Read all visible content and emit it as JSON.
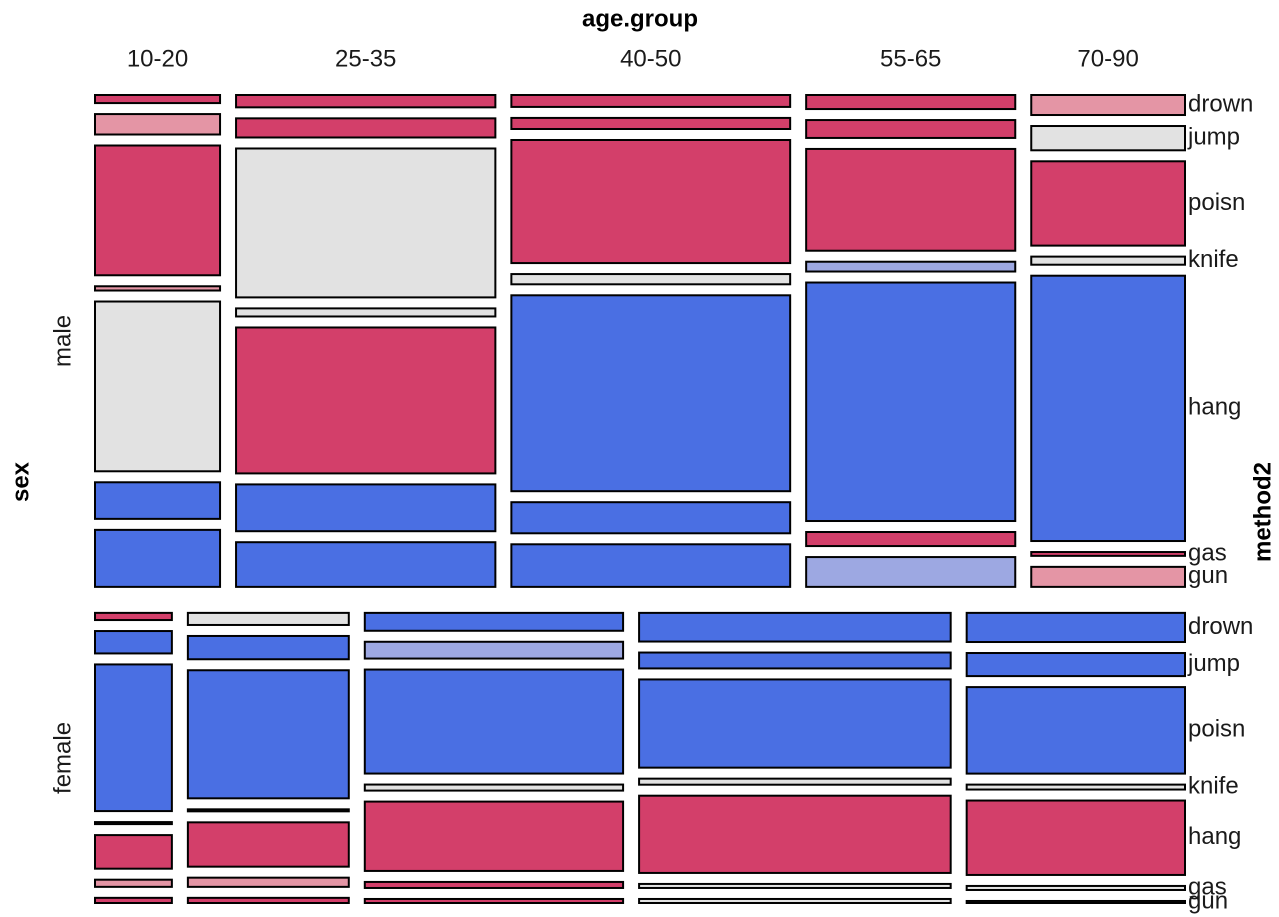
{
  "chart_data": {
    "type": "mosaic",
    "x_label": "age.group",
    "y_label": "sex",
    "z_label": "method2",
    "x_categories": [
      "10-20",
      "25-35",
      "40-50",
      "55-65",
      "70-90"
    ],
    "y_categories": [
      "male",
      "female"
    ],
    "z_categories": [
      "drown",
      "jump",
      "poisn",
      "knife",
      "hang",
      "gas",
      "gun"
    ],
    "rows": [
      {
        "share": 62.9,
        "columns": [
          12.2,
          25.3,
          27.2,
          20.4,
          15.0
        ],
        "cells": [
          [
            1.9,
            4.8,
            30.5,
            1.0,
            39.9,
            8.6,
            13.4
          ],
          [
            2.9,
            4.5,
            35.0,
            1.9,
            34.3,
            11.0,
            10.5
          ],
          [
            2.8,
            2.6,
            28.9,
            2.4,
            46.0,
            7.3,
            10.0
          ],
          [
            3.3,
            4.2,
            23.9,
            2.3,
            56.0,
            3.3,
            7.0
          ],
          [
            4.7,
            5.7,
            19.8,
            1.9,
            62.3,
            0.9,
            4.7
          ]
        ],
        "colors": [
          [
            "#d33f6a",
            "#e495a5",
            "#d33f6a",
            "#e495a5",
            "#e2e2e2",
            "#4a6fe3",
            "#4a6fe3"
          ],
          [
            "#d33f6a",
            "#d33f6a",
            "#e2e2e2",
            "#e2e2e2",
            "#d33f6a",
            "#4a6fe3",
            "#4a6fe3"
          ],
          [
            "#d33f6a",
            "#d33f6a",
            "#d33f6a",
            "#e2e2e2",
            "#4a6fe3",
            "#4a6fe3",
            "#4a6fe3"
          ],
          [
            "#d33f6a",
            "#d33f6a",
            "#d33f6a",
            "#9da8e2",
            "#4a6fe3",
            "#d33f6a",
            "#9da8e2"
          ],
          [
            "#e495a5",
            "#e2e2e2",
            "#d33f6a",
            "#e2e2e2",
            "#4a6fe3",
            "#d33f6a",
            "#e495a5"
          ]
        ]
      },
      {
        "share": 37.1,
        "columns": [
          7.5,
          15.7,
          25.2,
          30.4,
          21.3
        ],
        "cells": [
          [
            3.2,
            10.0,
            65.5,
            0.9,
            15.0,
            3.2,
            2.3
          ],
          [
            5.4,
            10.4,
            57.2,
            0.9,
            19.8,
            4.1,
            2.3
          ],
          [
            8.0,
            7.5,
            46.5,
            2.7,
            31.0,
            2.7,
            1.8
          ],
          [
            12.8,
            7.1,
            39.4,
            2.7,
            34.5,
            1.8,
            1.8
          ],
          [
            13.0,
            10.3,
            38.6,
            2.2,
            33.2,
            1.8,
            0.9
          ]
        ],
        "colors": [
          [
            "#d33f6a",
            "#4a6fe3",
            "#4a6fe3",
            "#e2e2e2",
            "#d33f6a",
            "#e495a5",
            "#d33f6a"
          ],
          [
            "#e2e2e2",
            "#4a6fe3",
            "#4a6fe3",
            "#e2e2e2",
            "#d33f6a",
            "#e495a5",
            "#d33f6a"
          ],
          [
            "#4a6fe3",
            "#9da8e2",
            "#4a6fe3",
            "#e2e2e2",
            "#d33f6a",
            "#d33f6a",
            "#d33f6a"
          ],
          [
            "#4a6fe3",
            "#4a6fe3",
            "#4a6fe3",
            "#e2e2e2",
            "#d33f6a",
            "#e2e2e2",
            "#e2e2e2"
          ],
          [
            "#4a6fe3",
            "#4a6fe3",
            "#4a6fe3",
            "#e2e2e2",
            "#d33f6a",
            "#e2e2e2",
            "#e2e2e2"
          ]
        ]
      }
    ]
  }
}
